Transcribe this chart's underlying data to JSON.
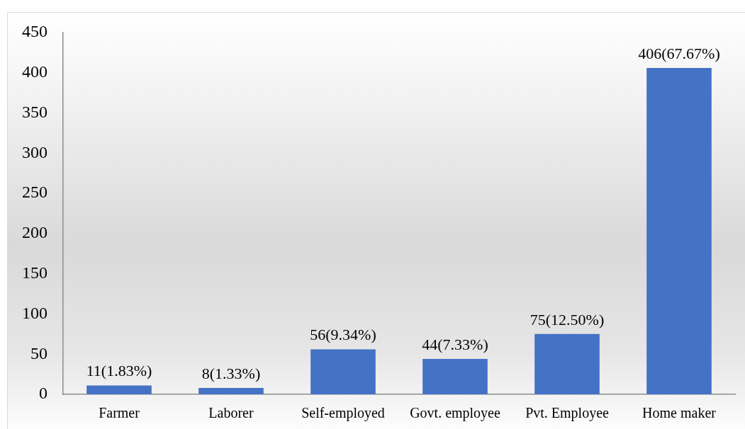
{
  "chart_data": {
    "type": "bar",
    "categories": [
      "Farmer",
      "Laborer",
      "Self-employed",
      "Govt. employee",
      "Pvt. Employee",
      "Home maker"
    ],
    "values": [
      11,
      8,
      56,
      44,
      75,
      406
    ],
    "value_labels": [
      "11(1.83%)",
      "8(1.33%)",
      "56(9.34%)",
      "44(7.33%)",
      "75(12.50%)",
      "406(67.67%)"
    ],
    "color": "#4472c4",
    "ylim": [
      0,
      450
    ],
    "yticks": [
      0,
      50,
      100,
      150,
      200,
      250,
      300,
      350,
      400,
      450
    ]
  }
}
